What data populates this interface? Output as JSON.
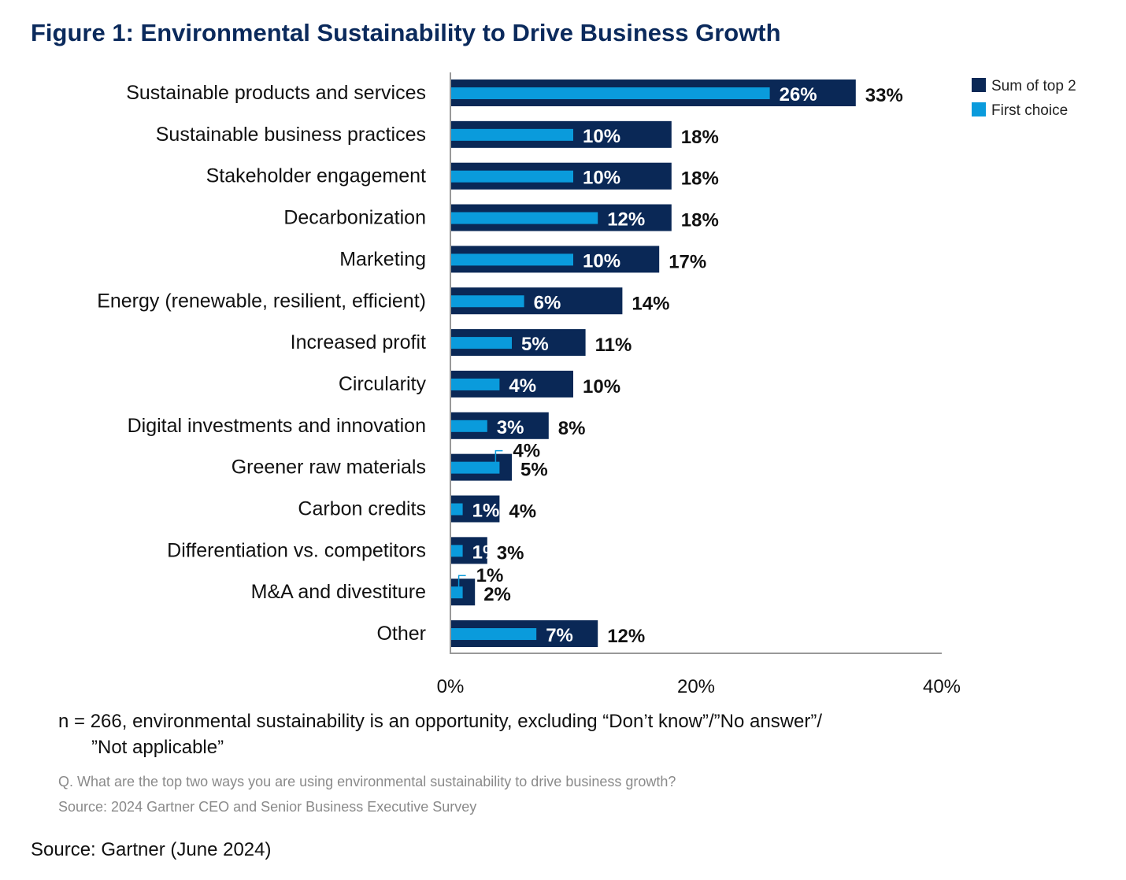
{
  "title": "Figure 1: Environmental Sustainability to Drive Business Growth",
  "chart_data": {
    "type": "bar",
    "orientation": "horizontal",
    "categories": [
      "Sustainable products and services",
      "Sustainable business practices",
      "Stakeholder engagement",
      "Decarbonization",
      "Marketing",
      "Energy (renewable, resilient, efficient)",
      "Increased profit",
      "Circularity",
      "Digital investments and innovation",
      "Greener raw materials",
      "Carbon credits",
      "Differentiation vs. competitors",
      "M&A and divestiture",
      "Other"
    ],
    "series": [
      {
        "name": "Sum of top 2",
        "color": "#0a2856",
        "values": [
          33,
          18,
          18,
          18,
          17,
          14,
          11,
          10,
          8,
          5,
          4,
          3,
          2,
          12
        ]
      },
      {
        "name": "First choice",
        "color": "#0a9bdc",
        "values": [
          26,
          10,
          10,
          12,
          10,
          6,
          5,
          4,
          3,
          4,
          1,
          1,
          1,
          7
        ]
      }
    ],
    "xlim": [
      0,
      40
    ],
    "xticks": [
      "0%",
      "20%",
      "40%"
    ],
    "legend_position": "top-right",
    "grid": false
  },
  "note_line1": "n = 266, environmental sustainability is an opportunity, excluding “Don’t know”/”No answer”/",
  "note_line2": "”Not applicable”",
  "question": "Q. What are the top two ways you are using environmental sustainability to drive business growth?",
  "survey_source": "Source: 2024 Gartner CEO and Senior Business Executive Survey",
  "source": "Source: Gartner (June 2024)"
}
